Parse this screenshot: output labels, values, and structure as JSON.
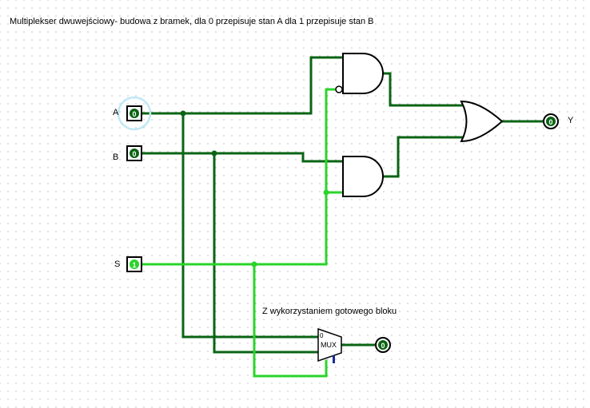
{
  "title": "Multiplekser dwuwejściowy- budowa z bramek, dla 0 przepisuje stan A dla 1 przepisuje stan B",
  "subtitle": "Z wykorzystaniem gotowego bloku",
  "inputs": {
    "a": {
      "label": "A",
      "value": "0"
    },
    "b": {
      "label": "B",
      "value": "0"
    },
    "s": {
      "label": "S",
      "value": "1"
    }
  },
  "outputs": {
    "y": {
      "label": "Y",
      "value": "0"
    },
    "mux": {
      "value": "0"
    }
  },
  "mux_block": {
    "label": "MUX",
    "select0_label": "0"
  },
  "colors": {
    "wire_low": "#0a6414",
    "wire_high": "#2ad42a",
    "selected_halo": "#bfe8f6",
    "pin_value_low": "#0a6414",
    "pin_value_high": "#2ad42a",
    "mux_select_pin": "#1a2a9a"
  }
}
